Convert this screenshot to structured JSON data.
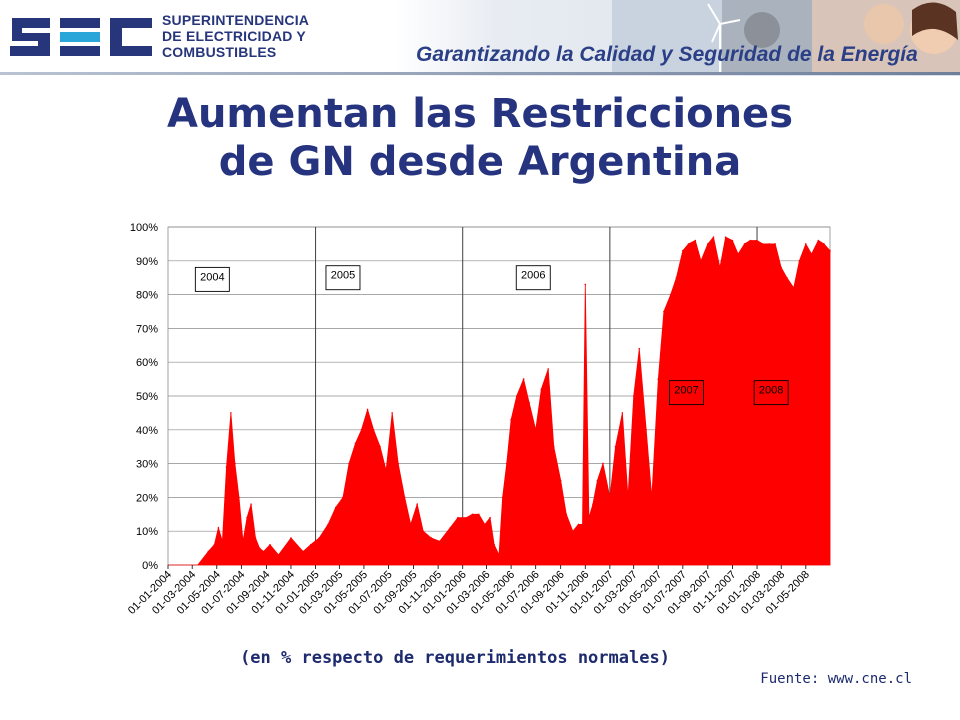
{
  "header": {
    "logo_text": "SEC",
    "agency_lines": [
      "SUPERINTENDENCIA",
      "DE ELECTRICIDAD Y",
      "COMBUSTIBLES"
    ],
    "slogan": "Garantizando la Calidad y Seguridad de la Energía",
    "colors": {
      "brand_blue": "#27357a",
      "brand_light_blue": "#2aa6d8"
    }
  },
  "title_lines": [
    "Aumentan las Restricciones",
    "de GN desde Argentina"
  ],
  "subtitle": "(en % respecto de requerimientos normales)",
  "source": "Fuente: www.cne.cl",
  "chart_data": {
    "type": "area",
    "title": "",
    "xlabel": "",
    "ylabel": "",
    "color": "#ff0000",
    "ylim": [
      0,
      100
    ],
    "y_ticks": [
      "0%",
      "10%",
      "20%",
      "30%",
      "40%",
      "50%",
      "60%",
      "70%",
      "80%",
      "90%",
      "100%"
    ],
    "x_range": [
      "2004-01-01",
      "2008-06-30"
    ],
    "x_tick_labels": [
      "01-01-2004",
      "01-03-2004",
      "01-05-2004",
      "01-07-2004",
      "01-09-2004",
      "01-11-2004",
      "01-01-2005",
      "01-03-2005",
      "01-05-2005",
      "01-07-2005",
      "01-09-2005",
      "01-11-2005",
      "01-01-2006",
      "01-03-2006",
      "01-05-2006",
      "01-07-2006",
      "01-09-2006",
      "01-11-2006",
      "01-01-2007",
      "01-03-2007",
      "01-05-2007",
      "01-07-2007",
      "01-09-2007",
      "01-11-2007",
      "01-01-2008",
      "01-03-2008",
      "01-05-2008"
    ],
    "grid": true,
    "year_labels": [
      {
        "text": "2004",
        "date": "2004-04-20",
        "y": 84.5
      },
      {
        "text": "2005",
        "date": "2005-03-10",
        "y": 85
      },
      {
        "text": "2006",
        "date": "2006-06-25",
        "y": 85
      },
      {
        "text": "2007",
        "date": "2007-07-10",
        "y": 51
      },
      {
        "text": "2008",
        "date": "2008-02-05",
        "y": 51
      }
    ],
    "x": [
      "2004-01-01",
      "2004-03-15",
      "2004-04-10",
      "2004-04-25",
      "2004-05-05",
      "2004-05-15",
      "2004-05-25",
      "2004-06-05",
      "2004-06-15",
      "2004-06-25",
      "2004-07-05",
      "2004-07-15",
      "2004-07-25",
      "2004-08-05",
      "2004-08-15",
      "2004-08-25",
      "2004-09-10",
      "2004-10-01",
      "2004-11-01",
      "2004-12-01",
      "2004-12-20",
      "2005-01-10",
      "2005-02-01",
      "2005-02-20",
      "2005-03-10",
      "2005-03-25",
      "2005-04-10",
      "2005-04-25",
      "2005-05-10",
      "2005-05-25",
      "2005-06-10",
      "2005-06-25",
      "2005-07-10",
      "2005-07-25",
      "2005-08-10",
      "2005-08-25",
      "2005-09-10",
      "2005-09-25",
      "2005-10-15",
      "2005-11-05",
      "2005-12-01",
      "2005-12-20",
      "2006-01-10",
      "2006-01-25",
      "2006-02-10",
      "2006-02-25",
      "2006-03-10",
      "2006-03-20",
      "2006-04-01",
      "2006-04-10",
      "2006-04-20",
      "2006-05-01",
      "2006-05-15",
      "2006-06-01",
      "2006-06-15",
      "2006-07-01",
      "2006-07-15",
      "2006-08-01",
      "2006-08-15",
      "2006-09-01",
      "2006-09-15",
      "2006-10-01",
      "2006-10-15",
      "2006-10-25",
      "2006-11-01",
      "2006-11-10",
      "2006-11-20",
      "2006-12-01",
      "2006-12-15",
      "2007-01-01",
      "2007-01-15",
      "2007-02-01",
      "2007-02-15",
      "2007-03-01",
      "2007-03-15",
      "2007-04-01",
      "2007-04-15",
      "2007-05-01",
      "2007-05-15",
      "2007-06-01",
      "2007-06-15",
      "2007-07-01",
      "2007-07-15",
      "2007-08-01",
      "2007-08-15",
      "2007-09-01",
      "2007-09-15",
      "2007-10-01",
      "2007-10-15",
      "2007-11-01",
      "2007-11-15",
      "2007-12-01",
      "2007-12-15",
      "2008-01-01",
      "2008-01-15",
      "2008-02-01",
      "2008-02-15",
      "2008-03-01",
      "2008-03-15",
      "2008-04-01",
      "2008-04-15",
      "2008-05-01",
      "2008-05-15",
      "2008-06-01",
      "2008-06-15",
      "2008-06-30"
    ],
    "values": [
      0,
      0,
      4,
      6,
      11,
      7,
      29,
      45,
      30,
      20,
      7,
      14,
      18,
      8,
      5,
      4,
      6,
      3,
      8,
      4,
      6,
      8,
      12,
      17,
      20,
      30,
      36,
      40,
      46,
      40,
      35,
      28,
      45,
      30,
      20,
      12,
      18,
      10,
      8,
      7,
      11,
      14,
      14,
      15,
      15,
      12,
      14,
      6,
      3,
      20,
      30,
      43,
      50,
      55,
      48,
      40,
      52,
      58,
      35,
      25,
      15,
      10,
      12,
      12,
      83,
      14,
      18,
      25,
      30,
      20,
      35,
      45,
      20,
      50,
      64,
      40,
      20,
      55,
      75,
      80,
      85,
      93,
      95,
      96,
      90,
      95,
      97,
      88,
      97,
      96,
      92,
      95,
      96,
      96,
      95,
      95,
      95,
      88,
      85,
      82,
      90,
      95,
      92,
      96,
      95,
      93
    ]
  }
}
